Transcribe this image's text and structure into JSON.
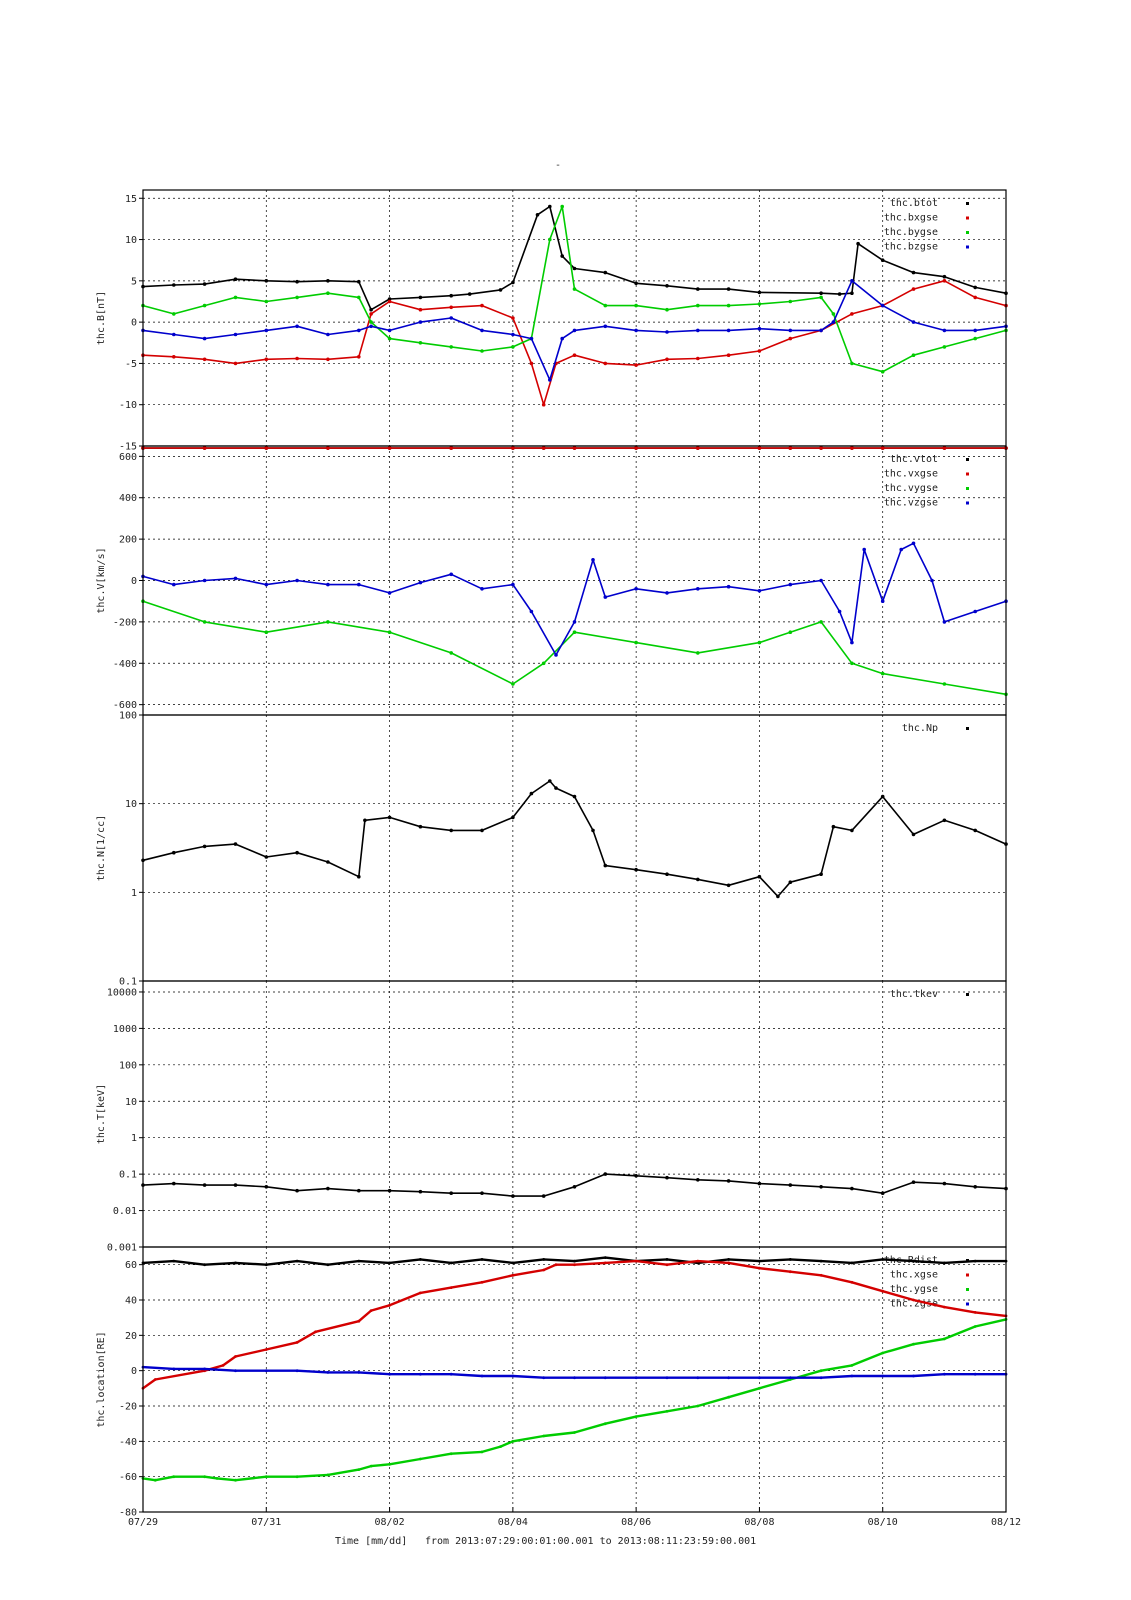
{
  "page_title": "-",
  "footer": {
    "label": "Time [mm/dd]",
    "range_text": "from 2013:07:29:00:01:00.001  to  2013:08:11:23:59:00.001"
  },
  "x_axis": {
    "min_day": 0,
    "max_day": 14,
    "tick_days": [
      0,
      2,
      4,
      6,
      8,
      10,
      12,
      14
    ],
    "tick_labels": [
      "07/29",
      "07/31",
      "08/02",
      "08/04",
      "08/06",
      "08/08",
      "08/10",
      "08/12"
    ]
  },
  "colors": {
    "black": "#000000",
    "red": "#d40000",
    "green": "#00cc00",
    "blue": "#0000cc"
  },
  "chart_data": [
    {
      "type": "scatter",
      "ylabel": "thc.B[nT]",
      "ylim": [
        -15,
        16
      ],
      "scale": "linear",
      "yticks": [
        -15,
        -10,
        -5,
        0,
        5,
        10,
        15
      ],
      "ytick_labels": [
        "-15",
        "-10",
        "-5",
        "0",
        "5",
        "10",
        "15"
      ],
      "legend_position": "top-right",
      "series": [
        {
          "name": "thc.btot",
          "color": "#000000",
          "x": [
            0,
            0.5,
            1,
            1.5,
            2,
            2.5,
            3,
            3.5,
            3.7,
            4,
            4.5,
            5,
            5.3,
            5.8,
            6,
            6.4,
            6.6,
            6.8,
            7,
            7.5,
            8,
            8.5,
            9,
            9.5,
            10,
            11,
            11.3,
            11.5,
            11.6,
            12,
            12.5,
            13,
            13.5,
            14
          ],
          "y": [
            4.3,
            4.5,
            4.6,
            5.2,
            5.0,
            4.9,
            5.0,
            4.9,
            1.5,
            2.8,
            3.0,
            3.2,
            3.4,
            3.9,
            4.8,
            13,
            14,
            8,
            6.5,
            6,
            4.7,
            4.4,
            4,
            4.0,
            3.6,
            3.5,
            3.4,
            3.5,
            9.5,
            7.5,
            6,
            5.5,
            4.2,
            3.5
          ]
        },
        {
          "name": "thc.bxgse",
          "color": "#d40000",
          "x": [
            0,
            0.5,
            1,
            1.5,
            2,
            2.5,
            3,
            3.5,
            3.7,
            4,
            4.5,
            5,
            5.5,
            6,
            6.3,
            6.5,
            6.7,
            7,
            7.5,
            8,
            8.5,
            9,
            9.5,
            10,
            10.5,
            11,
            11.5,
            12,
            12.5,
            13,
            13.5,
            14
          ],
          "y": [
            -4,
            -4.2,
            -4.5,
            -5,
            -4.5,
            -4.4,
            -4.5,
            -4.2,
            1,
            2.5,
            1.5,
            1.8,
            2,
            0.5,
            -5,
            -10,
            -5,
            -4,
            -5,
            -5.2,
            -4.5,
            -4.4,
            -4,
            -3.5,
            -2,
            -1,
            1,
            2,
            4,
            5,
            3,
            2
          ]
        },
        {
          "name": "thc.bygse",
          "color": "#00cc00",
          "x": [
            0,
            0.5,
            1,
            1.5,
            2,
            2.5,
            3,
            3.5,
            3.7,
            4,
            4.5,
            5,
            5.5,
            6,
            6.3,
            6.6,
            6.8,
            7,
            7.5,
            8,
            8.5,
            9,
            9.5,
            10,
            10.5,
            11,
            11.2,
            11.5,
            12,
            12.5,
            13,
            13.5,
            14
          ],
          "y": [
            2,
            1,
            2,
            3,
            2.5,
            3,
            3.5,
            3,
            0,
            -2,
            -2.5,
            -3,
            -3.5,
            -3,
            -2,
            10,
            14,
            4,
            2,
            2,
            1.5,
            2,
            2,
            2.2,
            2.5,
            3,
            1,
            -5,
            -6,
            -4,
            -3,
            -2,
            -1
          ]
        },
        {
          "name": "thc.bzgse",
          "color": "#0000cc",
          "x": [
            0,
            0.5,
            1,
            1.5,
            2,
            2.5,
            3,
            3.5,
            3.7,
            4,
            4.5,
            5,
            5.5,
            6,
            6.3,
            6.6,
            6.8,
            7,
            7.5,
            8,
            8.5,
            9,
            9.5,
            10,
            10.5,
            11,
            11.2,
            11.5,
            12,
            12.5,
            13,
            13.5,
            14
          ],
          "y": [
            -1,
            -1.5,
            -2,
            -1.5,
            -1,
            -0.5,
            -1.5,
            -1,
            -0.5,
            -1,
            0,
            0.5,
            -1,
            -1.5,
            -2,
            -7,
            -2,
            -1,
            -0.5,
            -1,
            -1.2,
            -1,
            -1,
            -0.8,
            -1,
            -1,
            0,
            5,
            2,
            0,
            -1,
            -1,
            -0.5
          ]
        }
      ]
    },
    {
      "type": "scatter",
      "ylabel": "thc.V[km/s]",
      "ylim": [
        -650,
        650
      ],
      "scale": "linear",
      "yticks": [
        -600,
        -400,
        -200,
        0,
        200,
        400,
        600
      ],
      "ytick_labels": [
        "-600",
        "-400",
        "-200",
        "0",
        "200",
        "400",
        "600"
      ],
      "legend_position": "top-right",
      "series": [
        {
          "name": "thc.vtot",
          "color": "#000000",
          "x": [
            0,
            1,
            2,
            3,
            4,
            5,
            6,
            6.5,
            7,
            8,
            9,
            10,
            10.5,
            11,
            11.5,
            12,
            13,
            14
          ],
          "y": [
            640,
            640,
            640,
            640,
            640,
            640,
            640,
            640,
            640,
            640,
            640,
            640,
            640,
            640,
            640,
            640,
            640,
            640
          ]
        },
        {
          "name": "thc.vxgse",
          "color": "#d40000",
          "x": [
            0,
            1,
            2,
            3,
            4,
            5,
            6,
            6.5,
            7,
            8,
            9,
            10,
            10.5,
            11,
            11.5,
            12,
            13,
            14
          ],
          "y": [
            640,
            640,
            640,
            640,
            640,
            640,
            640,
            640,
            640,
            640,
            640,
            640,
            640,
            640,
            640,
            640,
            640,
            640
          ]
        },
        {
          "name": "thc.vygse",
          "color": "#00cc00",
          "x": [
            0,
            1,
            2,
            3,
            4,
            5,
            6,
            6.5,
            7,
            8,
            9,
            10,
            10.5,
            11,
            11.5,
            12,
            13,
            14
          ],
          "y": [
            -100,
            -200,
            -250,
            -200,
            -250,
            -350,
            -500,
            -400,
            -250,
            -300,
            -350,
            -300,
            -250,
            -200,
            -400,
            -450,
            -500,
            -550
          ]
        },
        {
          "name": "thc.vzgse",
          "color": "#0000cc",
          "x": [
            0,
            0.5,
            1,
            1.5,
            2,
            2.5,
            3,
            3.5,
            4,
            4.5,
            5,
            5.5,
            6,
            6.3,
            6.7,
            7,
            7.3,
            7.5,
            8,
            8.5,
            9,
            9.5,
            10,
            10.5,
            11,
            11.3,
            11.5,
            11.7,
            12,
            12.3,
            12.5,
            12.8,
            13,
            13.5,
            14
          ],
          "y": [
            20,
            -20,
            0,
            10,
            -20,
            0,
            -20,
            -20,
            -60,
            -10,
            30,
            -40,
            -20,
            -150,
            -360,
            -200,
            100,
            -80,
            -40,
            -60,
            -40,
            -30,
            -50,
            -20,
            0,
            -150,
            -300,
            150,
            -100,
            150,
            180,
            0,
            -200,
            -150,
            -100
          ]
        }
      ]
    },
    {
      "type": "scatter",
      "ylabel": "thc.N[1/cc]",
      "ylim": [
        0.1,
        100
      ],
      "scale": "log",
      "yticks": [
        0.1,
        1,
        10,
        100
      ],
      "ytick_labels": [
        "0.1",
        "1",
        "10",
        "100"
      ],
      "legend_position": "top-right",
      "series": [
        {
          "name": "thc.Np",
          "color": "#000000",
          "x": [
            0,
            0.5,
            1,
            1.5,
            2,
            2.5,
            3,
            3.5,
            3.6,
            4,
            4.5,
            5,
            5.5,
            6,
            6.3,
            6.6,
            6.7,
            7,
            7.3,
            7.5,
            8,
            8.5,
            9,
            9.5,
            10,
            10.3,
            10.5,
            11,
            11.2,
            11.5,
            12,
            12.5,
            13,
            13.5,
            14
          ],
          "y": [
            2.3,
            2.8,
            3.3,
            3.5,
            2.5,
            2.8,
            2.2,
            1.5,
            6.5,
            7,
            5.5,
            5,
            5,
            7,
            13,
            18,
            15,
            12,
            5,
            2,
            1.8,
            1.6,
            1.4,
            1.2,
            1.5,
            0.9,
            1.3,
            1.6,
            5.5,
            5,
            12,
            4.5,
            6.5,
            5,
            3.5
          ]
        }
      ]
    },
    {
      "type": "scatter",
      "ylabel": "thc.T[keV]",
      "ylim": [
        0.001,
        20000
      ],
      "scale": "log",
      "yticks": [
        0.001,
        0.01,
        0.1,
        1,
        10,
        100,
        1000,
        10000
      ],
      "ytick_labels": [
        "0.001",
        "0.01",
        "0.1",
        "1",
        "10",
        "100",
        "1000",
        "10000"
      ],
      "legend_position": "top-right",
      "series": [
        {
          "name": "thc.tkev",
          "color": "#000000",
          "x": [
            0,
            0.5,
            1,
            1.5,
            2,
            2.5,
            3,
            3.5,
            4,
            4.5,
            5,
            5.5,
            6,
            6.5,
            7,
            7.5,
            8,
            8.5,
            9,
            9.5,
            10,
            10.5,
            11,
            11.5,
            12,
            12.5,
            13,
            13.5,
            14
          ],
          "y": [
            0.05,
            0.055,
            0.05,
            0.05,
            0.045,
            0.035,
            0.04,
            0.035,
            0.035,
            0.033,
            0.03,
            0.03,
            0.025,
            0.025,
            0.045,
            0.1,
            0.09,
            0.08,
            0.07,
            0.065,
            0.055,
            0.05,
            0.045,
            0.04,
            0.03,
            0.06,
            0.055,
            0.045,
            0.04
          ]
        }
      ]
    },
    {
      "type": "line",
      "ylabel": "thc.location[RE]",
      "ylim": [
        -80,
        70
      ],
      "scale": "linear",
      "yticks": [
        -80,
        -60,
        -40,
        -20,
        0,
        20,
        40,
        60
      ],
      "ytick_labels": [
        "-80",
        "-60",
        "-40",
        "-20",
        "0",
        "20",
        "40",
        "60"
      ],
      "legend_position": "top-right",
      "series": [
        {
          "name": "thc.Rdist",
          "color": "#000000",
          "x": [
            0,
            0.5,
            1,
            1.5,
            2,
            2.5,
            3,
            3.5,
            4,
            4.5,
            5,
            5.5,
            6,
            6.5,
            7,
            7.5,
            8,
            8.5,
            9,
            9.5,
            10,
            10.5,
            11,
            11.5,
            12,
            12.5,
            13,
            13.5,
            14
          ],
          "y": [
            61,
            62,
            60,
            61,
            60,
            62,
            60,
            62,
            61,
            63,
            61,
            63,
            61,
            63,
            62,
            64,
            62,
            63,
            61,
            63,
            62,
            63,
            62,
            61,
            63,
            62,
            61,
            62,
            62
          ]
        },
        {
          "name": "thc.xgse",
          "color": "#d40000",
          "x": [
            0,
            0.2,
            1,
            1.3,
            1.5,
            2,
            2.5,
            2.8,
            3.5,
            3.7,
            4,
            4.5,
            5,
            5.5,
            6,
            6.5,
            6.7,
            7,
            7.5,
            8,
            8.5,
            9,
            9.5,
            10,
            10.5,
            11,
            11.5,
            12,
            12.5,
            13,
            13.5,
            14
          ],
          "y": [
            -10,
            -5,
            0,
            3,
            8,
            12,
            16,
            22,
            28,
            34,
            37,
            44,
            47,
            50,
            54,
            57,
            60,
            60,
            61,
            62,
            60,
            62,
            61,
            58,
            56,
            54,
            50,
            45,
            40,
            36,
            33,
            31
          ]
        },
        {
          "name": "thc.ygse",
          "color": "#00cc00",
          "x": [
            0,
            0.2,
            0.5,
            1,
            1.2,
            1.5,
            2,
            2.5,
            3,
            3.5,
            3.7,
            4,
            4.5,
            5,
            5.5,
            5.8,
            6,
            6.5,
            7,
            7.5,
            8,
            8.5,
            9,
            9.5,
            10,
            10.5,
            11,
            11.5,
            12,
            12.5,
            13,
            13.5,
            14
          ],
          "y": [
            -61,
            -62,
            -60,
            -60,
            -61,
            -62,
            -60,
            -60,
            -59,
            -56,
            -54,
            -53,
            -50,
            -47,
            -46,
            -43,
            -40,
            -37,
            -35,
            -30,
            -26,
            -23,
            -20,
            -15,
            -10,
            -5,
            0,
            3,
            10,
            15,
            18,
            25,
            29
          ]
        },
        {
          "name": "thc.zgse",
          "color": "#0000cc",
          "x": [
            0,
            0.5,
            1,
            1.5,
            2,
            2.5,
            3,
            3.5,
            4,
            4.5,
            5,
            5.5,
            6,
            6.5,
            7,
            7.5,
            8,
            8.5,
            9,
            9.5,
            10,
            10.5,
            11,
            11.5,
            12,
            12.5,
            13,
            13.5,
            14
          ],
          "y": [
            2,
            1,
            1,
            0,
            0,
            0,
            -1,
            -1,
            -2,
            -2,
            -2,
            -3,
            -3,
            -4,
            -4,
            -4,
            -4,
            -4,
            -4,
            -4,
            -4,
            -4,
            -4,
            -3,
            -3,
            -3,
            -2,
            -2,
            -2
          ]
        }
      ]
    }
  ]
}
